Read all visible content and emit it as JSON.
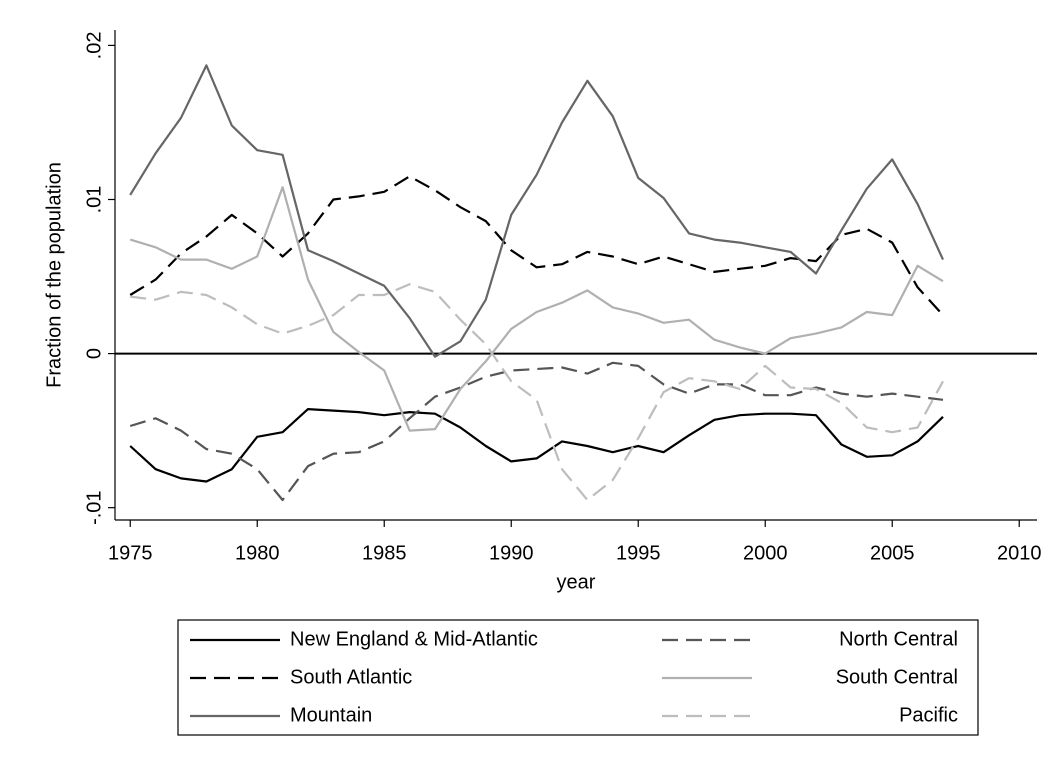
{
  "chart_data": {
    "type": "line",
    "xlabel": "year",
    "ylabel": "Fraction of the population",
    "x": [
      1975,
      1976,
      1977,
      1978,
      1979,
      1980,
      1981,
      1982,
      1983,
      1984,
      1985,
      1986,
      1987,
      1988,
      1989,
      1990,
      1991,
      1992,
      1993,
      1994,
      1995,
      1996,
      1997,
      1998,
      1999,
      2000,
      2001,
      2002,
      2003,
      2004,
      2005,
      2006,
      2007
    ],
    "xlim": [
      1974.4,
      2010.7
    ],
    "xticks": [
      1975,
      1980,
      1985,
      1990,
      1995,
      2000,
      2005,
      2010
    ],
    "ylim": [
      -0.0108,
      0.021
    ],
    "yticks": [
      {
        "value": -0.01,
        "label": "-.01"
      },
      0,
      {
        "value": 0.01,
        "label": ".01"
      },
      {
        "value": 0.02,
        "label": ".02"
      }
    ],
    "yline": 0,
    "grid": false,
    "legend_position": "bottom",
    "series": [
      {
        "name": "New England & Mid-Atlantic",
        "color": "#000000",
        "style": "solid",
        "values": [
          -0.006,
          -0.0075,
          -0.0081,
          -0.0083,
          -0.0075,
          -0.0054,
          -0.0051,
          -0.0036,
          -0.0037,
          -0.0038,
          -0.004,
          -0.0038,
          -0.0039,
          -0.0048,
          -0.006,
          -0.007,
          -0.0068,
          -0.0057,
          -0.006,
          -0.0064,
          -0.006,
          -0.0064,
          -0.0053,
          -0.0043,
          -0.004,
          -0.0039,
          -0.0039,
          -0.004,
          -0.0059,
          -0.0067,
          -0.0066,
          -0.0057,
          -0.0041
        ]
      },
      {
        "name": "North Central",
        "color": "#555555",
        "style": "dashed",
        "values": [
          -0.0047,
          -0.0042,
          -0.005,
          -0.0062,
          -0.0065,
          -0.0075,
          -0.0095,
          -0.0073,
          -0.0065,
          -0.0064,
          -0.0057,
          -0.0042,
          -0.0028,
          -0.0022,
          -0.0015,
          -0.0011,
          -0.001,
          -0.0009,
          -0.0013,
          -0.0006,
          -0.0008,
          -0.002,
          -0.0026,
          -0.002,
          -0.002,
          -0.0027,
          -0.0027,
          -0.0022,
          -0.0026,
          -0.0028,
          -0.0026,
          -0.0028,
          -0.003
        ]
      },
      {
        "name": "South Atlantic",
        "color": "#000000",
        "style": "dashed",
        "values": [
          0.0038,
          0.0048,
          0.0065,
          0.0076,
          0.009,
          0.0078,
          0.0063,
          0.0078,
          0.01,
          0.0102,
          0.0105,
          0.0115,
          0.0106,
          0.0095,
          0.0086,
          0.0067,
          0.0056,
          0.0058,
          0.0066,
          0.0063,
          0.0058,
          0.0063,
          0.0058,
          0.0053,
          0.0055,
          0.0057,
          0.0062,
          0.006,
          0.0077,
          0.0081,
          0.0072,
          0.0043,
          0.0025
        ]
      },
      {
        "name": "South Central",
        "color": "#b0b0b0",
        "style": "solid",
        "values": [
          0.0074,
          0.0069,
          0.0061,
          0.0061,
          0.0055,
          0.0063,
          0.0108,
          0.0048,
          0.0014,
          0.0001,
          -0.0011,
          -0.005,
          -0.0049,
          -0.0023,
          -0.0005,
          0.0016,
          0.0027,
          0.0033,
          0.0041,
          0.003,
          0.0026,
          0.002,
          0.0022,
          0.0009,
          0.0004,
          0,
          0.001,
          0.0013,
          0.0017,
          0.0027,
          0.0025,
          0.0057,
          0.0047
        ]
      },
      {
        "name": "Mountain",
        "color": "#666666",
        "style": "solid",
        "values": [
          0.0103,
          0.013,
          0.0153,
          0.0187,
          0.0148,
          0.0132,
          0.0129,
          0.0067,
          0.006,
          0.0052,
          0.0044,
          0.0023,
          -0.0002,
          0.0008,
          0.0035,
          0.009,
          0.0116,
          0.015,
          0.0177,
          0.0154,
          0.0114,
          0.0101,
          0.0078,
          0.0074,
          0.0072,
          0.0069,
          0.0066,
          0.0052,
          0.008,
          0.0107,
          0.0126,
          0.0097,
          0.0061
        ]
      },
      {
        "name": "Pacific",
        "color": "#bdbdbd",
        "style": "dashed",
        "values": [
          0.0037,
          0.0035,
          0.004,
          0.0038,
          0.003,
          0.0019,
          0.0013,
          0.0018,
          0.0025,
          0.0038,
          0.0038,
          0.0045,
          0.004,
          0.0022,
          0.0006,
          -0.0018,
          -0.003,
          -0.0075,
          -0.0095,
          -0.0082,
          -0.0055,
          -0.0025,
          -0.0016,
          -0.0018,
          -0.0023,
          -0.0008,
          -0.0022,
          -0.0023,
          -0.0032,
          -0.0048,
          -0.0051,
          -0.0048,
          -0.0018
        ]
      }
    ]
  }
}
